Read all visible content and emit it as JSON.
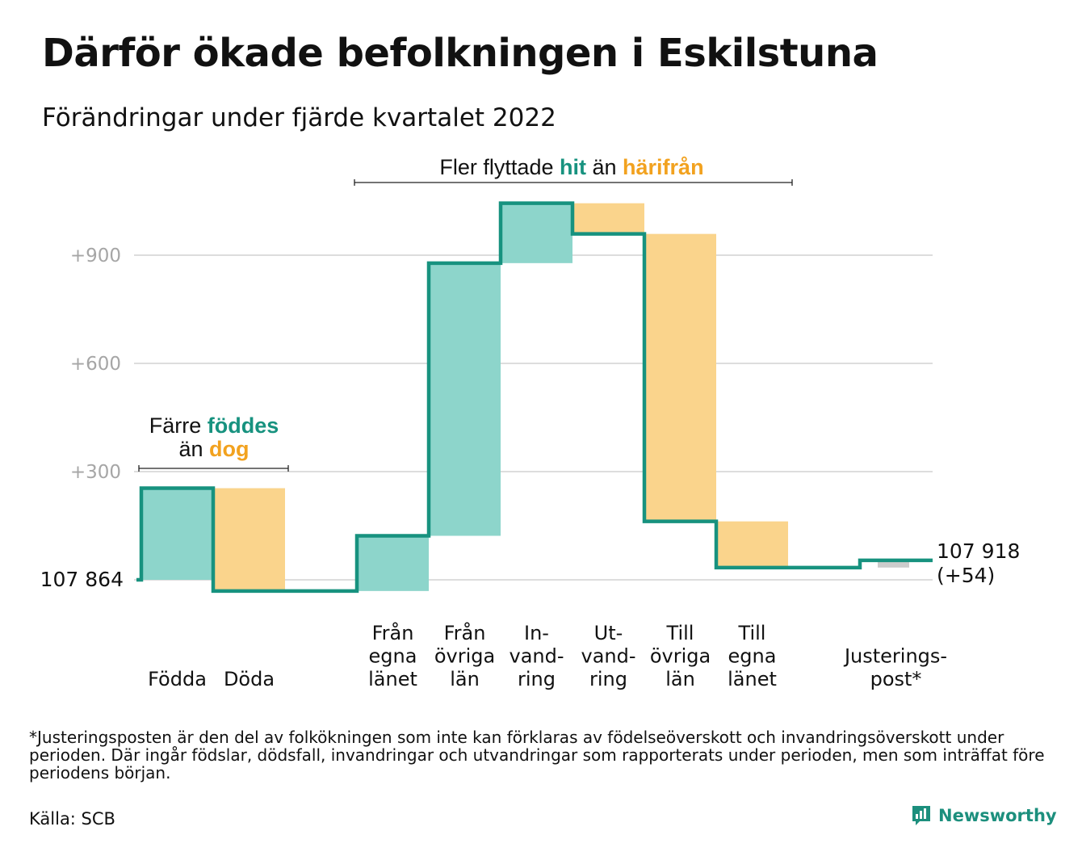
{
  "title": "Därför ökade befolkningen i Eskilstuna",
  "subtitle": "Förändringar under fjärde kvartalet 2022",
  "colors": {
    "increase": "#8dd5cb",
    "decrease": "#fad48c",
    "adjustment": "#cccccc",
    "line": "#17927f",
    "accent_teal": "#17927f",
    "accent_orange": "#f2a21f",
    "grid": "#dddddd",
    "tick": "#a6a6a6"
  },
  "annotations": {
    "births": {
      "l1_a": "Färre ",
      "l1_b": "föddes",
      "l2_a": "än ",
      "l2_b": "dog"
    },
    "migration": {
      "a": "Fler flyttade ",
      "b": "hit",
      "c": " än ",
      "d": "härifrån"
    }
  },
  "labels": {
    "start": "107 864",
    "end_1": "107 918",
    "end_2": "(+54)"
  },
  "footnote": "*Justeringsposten är den del av folkökningen som inte kan förklaras av födelseöverskott och invandringsöverskott under perioden. Där ingår födslar, dödsfall, invandringar och utvandringar som rapporterats under perioden, men som inträffat före periodens början.",
  "source": "Källa: SCB",
  "brand": "Newsworthy",
  "chart_data": {
    "type": "waterfall",
    "title": "Förändringar under fjärde kvartalet 2022",
    "start_value": 107864,
    "end_value": 107918,
    "net_change": 54,
    "y_ticks": [
      "+300",
      "+600",
      "+900"
    ],
    "y_tick_values": [
      300,
      600,
      900
    ],
    "ylim": [
      -40,
      1140
    ],
    "grid": true,
    "categories": [
      {
        "lines": [
          "Födda"
        ],
        "change": 254,
        "kind": "increase"
      },
      {
        "lines": [
          "Döda"
        ],
        "change": -285,
        "kind": "decrease"
      },
      {
        "lines": [],
        "change": 0,
        "kind": "gap"
      },
      {
        "lines": [
          "Från",
          "egna",
          "länet"
        ],
        "change": 153,
        "kind": "increase"
      },
      {
        "lines": [
          "Från",
          "övriga",
          "län"
        ],
        "change": 756,
        "kind": "increase"
      },
      {
        "lines": [
          "In-",
          "vand-",
          "ring"
        ],
        "change": 166,
        "kind": "increase"
      },
      {
        "lines": [
          "Ut-",
          "vand-",
          "ring"
        ],
        "change": -85,
        "kind": "decrease"
      },
      {
        "lines": [
          "Till",
          "övriga",
          "län"
        ],
        "change": -797,
        "kind": "decrease"
      },
      {
        "lines": [
          "Till",
          "egna",
          "länet"
        ],
        "change": -128,
        "kind": "decrease"
      },
      {
        "lines": [],
        "change": 0,
        "kind": "gap"
      },
      {
        "lines": [
          "Justerings-",
          "post*"
        ],
        "change": 20,
        "kind": "adjustment"
      }
    ]
  }
}
